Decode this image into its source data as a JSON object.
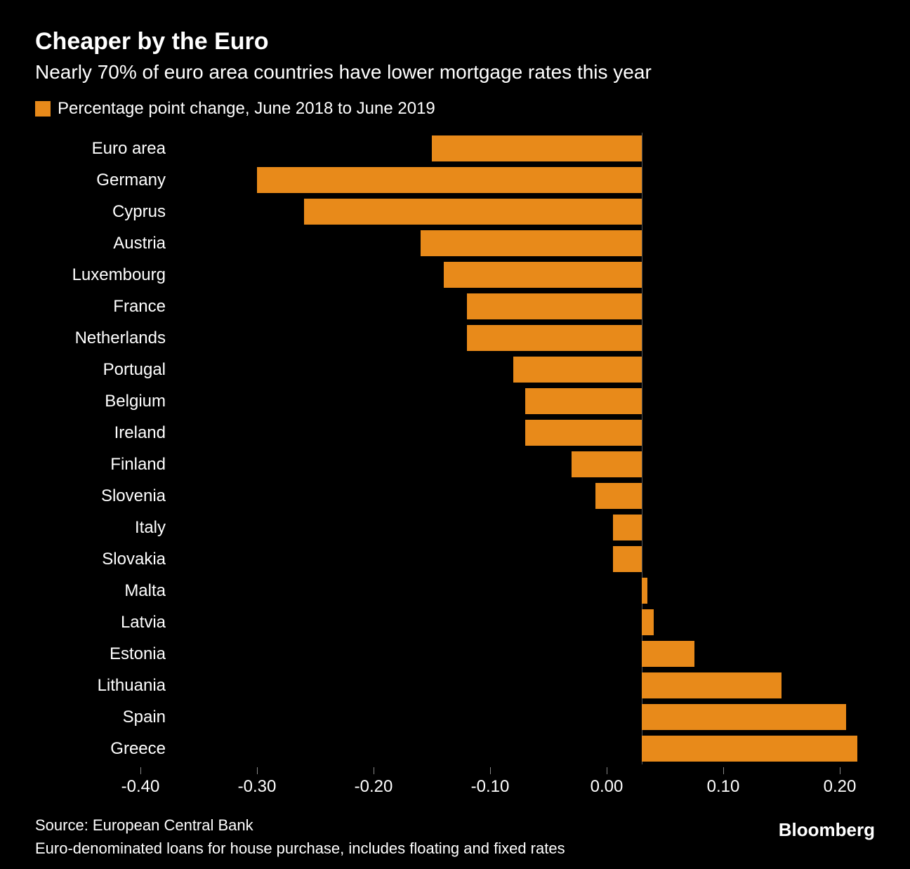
{
  "title": "Cheaper by the Euro",
  "subtitle": "Nearly 70% of euro area countries have lower mortgage rates this year",
  "legend": {
    "label": "Percentage point change, June 2018 to June 2019",
    "swatch_color": "#e88a1a"
  },
  "chart": {
    "type": "bar-horizontal",
    "background_color": "#000000",
    "bar_color": "#e88a1a",
    "text_color": "#ffffff",
    "zero_line_color": "#555555",
    "tick_color": "#888888",
    "xlim": [
      -0.4,
      0.2
    ],
    "xtick_step": 0.1,
    "xticks": [
      -0.4,
      -0.3,
      -0.2,
      -0.1,
      0.0,
      0.1,
      0.2
    ],
    "xtick_labels": [
      "-0.40",
      "-0.30",
      "-0.20",
      "-0.10",
      "0.00",
      "0.10",
      "0.20"
    ],
    "title_fontsize": 34,
    "subtitle_fontsize": 28,
    "legend_fontsize": 24,
    "label_fontsize": 24,
    "tick_fontsize": 24,
    "footer_fontsize": 22,
    "brand_fontsize": 26,
    "categories": [
      "Euro area",
      "Germany",
      "Cyprus",
      "Austria",
      "Luxembourg",
      "France",
      "Netherlands",
      "Portugal",
      "Belgium",
      "Ireland",
      "Finland",
      "Slovenia",
      "Italy",
      "Slovakia",
      "Malta",
      "Latvia",
      "Estonia",
      "Lithuania",
      "Spain",
      "Greece"
    ],
    "values": [
      -0.18,
      -0.33,
      -0.29,
      -0.19,
      -0.17,
      -0.15,
      -0.15,
      -0.11,
      -0.1,
      -0.1,
      -0.06,
      -0.04,
      -0.025,
      -0.025,
      0.005,
      0.01,
      0.045,
      0.12,
      0.175,
      0.185
    ]
  },
  "footer": {
    "source": "Source: European Central Bank",
    "note": "Euro-denominated loans for house purchase, includes floating and fixed rates"
  },
  "brand": "Bloomberg"
}
